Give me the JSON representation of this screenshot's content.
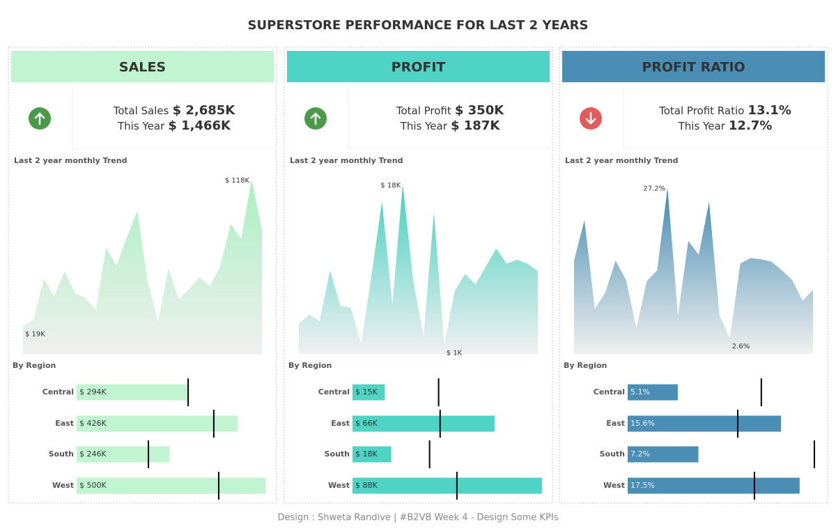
{
  "title": "SUPERSTORE PERFORMANCE FOR LAST 2 YEARS",
  "footer": "Design : Shweta Randive | #B2VB Week 4 - Design Some KPIs",
  "kpis": [
    {
      "header": "SALES",
      "color": "#c1f5d1",
      "arrow": "up",
      "line1_label": "Total Sales",
      "line1_value": "$ 2,685K",
      "line2_label": "This Year",
      "line2_value": "$ 1,466K",
      "trend_title": "Last 2 year monthly Trend",
      "region_title": "By Region"
    },
    {
      "header": "PROFIT",
      "color": "#4fd3c4",
      "arrow": "up",
      "line1_label": "Total Profit",
      "line1_value": "$ 350K",
      "line2_label": "This Year",
      "line2_value": "$ 187K",
      "trend_title": "Last 2 year monthly Trend",
      "region_title": "By Region"
    },
    {
      "header": "PROFIT RATIO",
      "color": "#4a8db5",
      "arrow": "down",
      "line1_label": "Total Profit Ratio",
      "line1_value": "13.1%",
      "line2_label": "This Year",
      "line2_value": "12.7%",
      "trend_title": "Last 2 year monthly Trend",
      "region_title": "By Region"
    }
  ],
  "chart_data": [
    {
      "type": "area",
      "color": "#a8f0c0",
      "ylim": [
        0,
        118
      ],
      "values": [
        19,
        23,
        51,
        39,
        56,
        41,
        38,
        30,
        72,
        60,
        79,
        97,
        49,
        22,
        58,
        37,
        44,
        52,
        46,
        60,
        88,
        78,
        118,
        84
      ],
      "value_labels": [
        "$ 19K",
        null,
        null,
        null,
        null,
        null,
        null,
        null,
        null,
        null,
        null,
        null,
        null,
        null,
        null,
        null,
        null,
        null,
        null,
        null,
        null,
        null,
        "$ 118K",
        null
      ]
    },
    {
      "type": "hbar",
      "color": "#c1f5d1",
      "label_color": "#333",
      "xlim": [
        0,
        507
      ],
      "categories": [
        "Central",
        "East",
        "South",
        "West"
      ],
      "values": [
        294,
        426,
        246,
        500
      ],
      "value_labels": [
        "$ 294K",
        "$ 426K",
        "$ 246K",
        "$ 500K"
      ],
      "reference_values": [
        295,
        363,
        190,
        376
      ]
    },
    {
      "type": "area",
      "color": "#3ccfbf",
      "ylim": [
        0,
        18.5
      ],
      "values": [
        3.2,
        4.2,
        3.5,
        8.9,
        5.1,
        4.9,
        1.1,
        8.4,
        16.2,
        5.3,
        18,
        7.8,
        1.9,
        15,
        1,
        6.7,
        8.5,
        7.4,
        9.3,
        11.2,
        9.6,
        10,
        9.6,
        8.8
      ],
      "value_labels": [
        null,
        null,
        null,
        null,
        null,
        null,
        null,
        null,
        null,
        null,
        "$ 18K",
        null,
        null,
        null,
        "$ 1K",
        null,
        null,
        null,
        null,
        null,
        null,
        null,
        null,
        null
      ]
    },
    {
      "type": "hbar",
      "color": "#4fd3c4",
      "label_color": "#333",
      "xlim": [
        0,
        89
      ],
      "categories": [
        "Central",
        "East",
        "South",
        "West"
      ],
      "values": [
        15,
        66,
        18,
        88
      ],
      "value_labels": [
        "$ 15K",
        "$ 66K",
        "$ 18K",
        "$ 88K"
      ],
      "reference_values": [
        40,
        40.7,
        35.8,
        48.5
      ]
    },
    {
      "type": "area",
      "color": "#3a85ad",
      "ylim": [
        0,
        28.5
      ],
      "values": [
        15.3,
        21.9,
        7.4,
        10.0,
        15.3,
        12.1,
        4.2,
        11.9,
        13.7,
        27.2,
        6.3,
        18.5,
        16.2,
        24.9,
        6.3,
        2.6,
        14.8,
        15.7,
        15.5,
        15.1,
        13.7,
        12.1,
        8.7,
        10.5
      ],
      "value_labels": [
        null,
        null,
        null,
        null,
        null,
        null,
        null,
        null,
        null,
        "27.2%",
        null,
        null,
        null,
        null,
        null,
        "2.6%",
        null,
        null,
        null,
        null,
        null,
        null,
        null,
        null
      ]
    },
    {
      "type": "hbar",
      "color": "#4a8db5",
      "label_color": "#e8f2f8",
      "xlim": [
        0,
        19.5
      ],
      "categories": [
        "Central",
        "East",
        "South",
        "West"
      ],
      "values": [
        5.1,
        15.6,
        7.2,
        17.5
      ],
      "value_labels": [
        "5.1%",
        "15.6%",
        "7.2%",
        "17.5%"
      ],
      "reference_values": [
        13.6,
        11.2,
        19.0,
        12.9
      ]
    }
  ]
}
